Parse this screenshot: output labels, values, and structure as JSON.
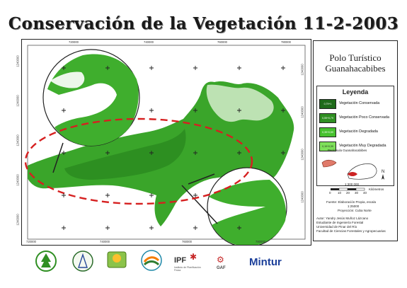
{
  "title": "Conservación de la Vegetación 11-2-2003",
  "panel": {
    "title_line1": "Polo Turístico",
    "title_line2": "Guanahacabibes",
    "legend_title": "Leyenda",
    "legend_items": [
      {
        "label": "Vegetación Conservada",
        "range": "0,79+1",
        "color": "#1f6b1a"
      },
      {
        "label": "Vegetación Poco Conservada",
        "range": "0,59+0,79",
        "color": "#2f8f22"
      },
      {
        "label": "Vegetación Degradada",
        "range": "0,39+0,59",
        "color": "#47c12f"
      },
      {
        "label": "Vegetación Muy Degradada",
        "range": "0,19+0,39",
        "color": "#7ee05a"
      }
    ],
    "inset_label": "Península Guanahacabibes",
    "north_label": "N",
    "scale_labels": [
      "0",
      "10",
      "20",
      "30",
      "40"
    ],
    "scale_unit": "Kilómetros",
    "scale_ratio": "1:300 000",
    "source_line1": "Fuente: Elaboración Propia, escala",
    "source_line2": "1:25000",
    "projection": "Proyección: Cuba Norte",
    "author_lines": [
      "Autor: Yandry Jesús Muñoz Lázcano",
      "Estudiante de Ingeniería Forestal",
      "Universidad de Pinar del Río",
      "Facultad de Ciencias Forestales y Agropecuarias"
    ]
  },
  "map": {
    "x_ticks_top": [
      "720000",
      "740000",
      "760000",
      "780000"
    ],
    "x_ticks_bottom": [
      "720000",
      "740000",
      "760000",
      "780000"
    ],
    "y_ticks_left": [
      "1240000",
      "1240000",
      "1240000",
      "1240000",
      "1240000",
      "1240000"
    ],
    "y_ticks_right": [
      "1240000",
      "1240000",
      "1240000",
      "1240000",
      "1240000"
    ]
  },
  "logos": {
    "ipf_text": "IPF",
    "ipf_sub": "Instituto de Planificación Física",
    "gaf_text": "GAF",
    "mintur_text": "Mintur"
  },
  "colors": {
    "vegetation_dark": "#1f6b1a",
    "vegetation_mid": "#3aa52a",
    "vegetation_light": "#63d244",
    "ellipse": "#d62020",
    "mintur_blue": "#1b3f9a"
  }
}
